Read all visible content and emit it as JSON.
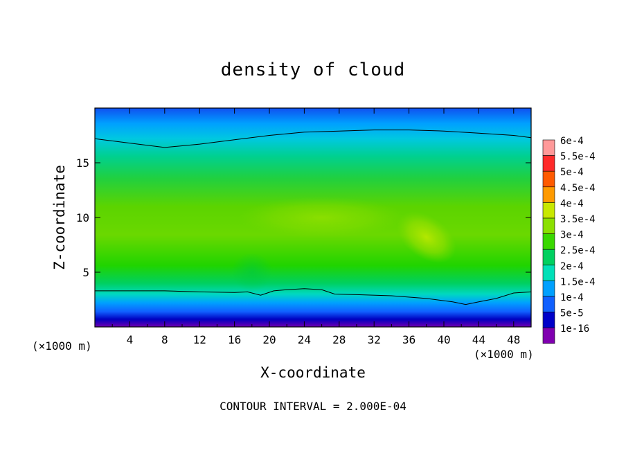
{
  "chart_data": {
    "type": "heatmap",
    "title": "density of cloud",
    "xlabel": "X-coordinate",
    "ylabel": "Z-coordinate",
    "x_unit_left": "(×1000 m)",
    "x_unit_right": "(×1000 m)",
    "x_range": [
      0,
      50
    ],
    "y_range": [
      0,
      20
    ],
    "xticks": [
      4,
      8,
      12,
      16,
      20,
      24,
      28,
      32,
      36,
      40,
      44,
      48
    ],
    "yticks": [
      5,
      10,
      15
    ],
    "footer": "CONTOUR INTERVAL = 2.000E-04",
    "colorbar": {
      "labels": [
        "6e-4",
        "5.5e-4",
        "5e-4",
        "4.5e-4",
        "4e-4",
        "3.5e-4",
        "3e-4",
        "2.5e-4",
        "2e-4",
        "1.5e-4",
        "1e-4",
        "5e-5",
        "1e-16"
      ],
      "levels": [
        0.0006,
        0.00055,
        0.0005,
        0.00045,
        0.0004,
        0.00035,
        0.0003,
        0.00025,
        0.0002,
        0.00015,
        0.0001,
        5e-05,
        1e-16
      ],
      "colors": [
        "#ff9999",
        "#ff2a2a",
        "#ff5a00",
        "#ff9a00",
        "#c8e800",
        "#8be000",
        "#39d800",
        "#00d060",
        "#00e0b8",
        "#00a0ff",
        "#1060ff",
        "#0000c8",
        "#8000b0"
      ]
    },
    "contour_lines": [
      {
        "level": 0.0002,
        "x": [
          0,
          4,
          8,
          12,
          16,
          20,
          24,
          28,
          32,
          36,
          40,
          44,
          48,
          50
        ],
        "z": [
          17.2,
          16.8,
          16.4,
          16.7,
          17.1,
          17.5,
          17.8,
          17.9,
          18.0,
          18.0,
          17.9,
          17.7,
          17.5,
          17.3
        ]
      },
      {
        "level": 0.0002,
        "x": [
          0,
          4,
          8,
          12,
          16,
          17.5,
          19,
          20.5,
          22,
          24,
          26,
          27.5,
          30,
          34,
          38,
          41,
          42.5,
          44,
          46,
          48,
          50
        ],
        "z": [
          3.3,
          3.3,
          3.3,
          3.2,
          3.15,
          3.2,
          2.9,
          3.3,
          3.4,
          3.5,
          3.4,
          3.0,
          2.95,
          2.85,
          2.6,
          2.3,
          2.05,
          2.3,
          2.6,
          3.1,
          3.2
        ]
      }
    ],
    "field_features": [
      {
        "description_value": "local maximum ~4e-4",
        "x": 38,
        "z": 8,
        "value": 0.0004
      },
      {
        "description_value": "mid-level band ~3e-4",
        "x": 25,
        "z": 10,
        "value": 0.0003
      }
    ]
  }
}
